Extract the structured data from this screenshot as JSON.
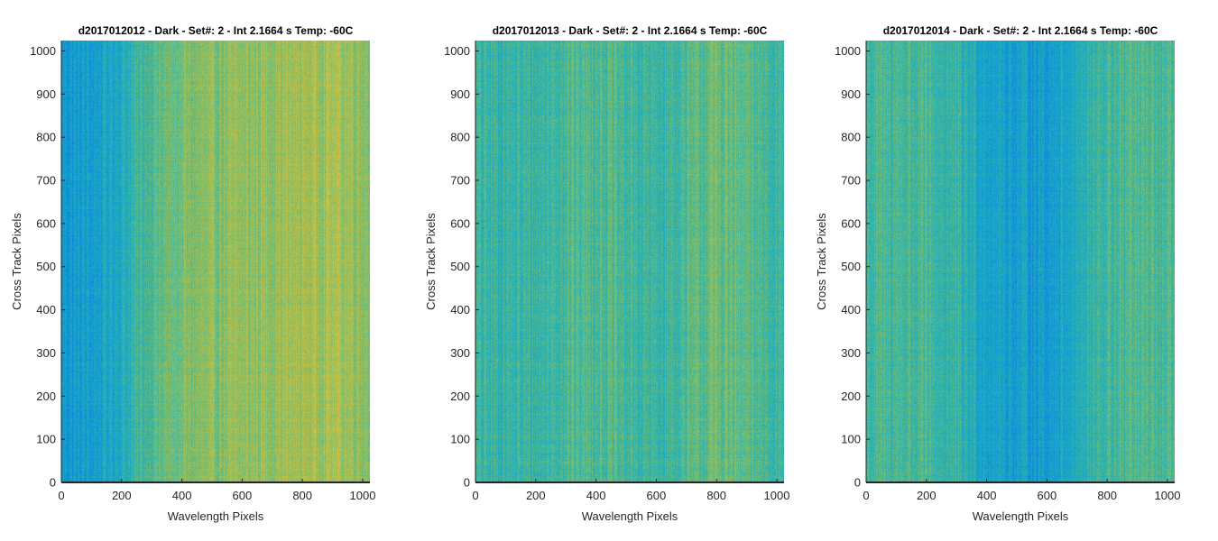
{
  "chart_data": [
    {
      "type": "heatmap",
      "title": "d2017012012 - Dark - Set#: 2 - Int 2.1664 s Temp: -60C",
      "xlabel": "Wavelength Pixels",
      "ylabel": "Cross Track Pixels",
      "xlim": [
        0,
        1024
      ],
      "ylim": [
        0,
        1024
      ],
      "xticks": [
        0,
        200,
        400,
        600,
        800,
        1000
      ],
      "yticks": [
        0,
        100,
        200,
        300,
        400,
        500,
        600,
        700,
        800,
        900,
        1000
      ],
      "colormap": "parula",
      "column_profile": {
        "x": [
          0,
          100,
          200,
          300,
          400,
          500,
          600,
          700,
          800,
          900,
          1024
        ],
        "level": [
          0.34,
          0.36,
          0.44,
          0.56,
          0.62,
          0.64,
          0.66,
          0.68,
          0.69,
          0.72,
          0.66
        ]
      }
    },
    {
      "type": "heatmap",
      "title": "d2017012013 - Dark - Set#: 2 - Int 2.1664 s Temp: -60C",
      "xlabel": "Wavelength Pixels",
      "ylabel": "Cross Track Pixels",
      "xlim": [
        0,
        1024
      ],
      "ylim": [
        0,
        1024
      ],
      "xticks": [
        0,
        200,
        400,
        600,
        800,
        1000
      ],
      "yticks": [
        0,
        100,
        200,
        300,
        400,
        500,
        600,
        700,
        800,
        900,
        1000
      ],
      "colormap": "parula",
      "column_profile": {
        "x": [
          0,
          100,
          200,
          300,
          400,
          500,
          600,
          700,
          800,
          900,
          1024
        ],
        "level": [
          0.5,
          0.5,
          0.5,
          0.55,
          0.56,
          0.52,
          0.5,
          0.54,
          0.6,
          0.56,
          0.52
        ]
      }
    },
    {
      "type": "heatmap",
      "title": "d2017012014 - Dark - Set#: 2 - Int 2.1664 s Temp: -60C",
      "xlabel": "Wavelength Pixels",
      "ylabel": "Cross Track Pixels",
      "xlim": [
        0,
        1024
      ],
      "ylim": [
        0,
        1024
      ],
      "xticks": [
        0,
        200,
        400,
        600,
        800,
        1000
      ],
      "yticks": [
        0,
        100,
        200,
        300,
        400,
        500,
        600,
        700,
        800,
        900,
        1000
      ],
      "colormap": "parula",
      "column_profile": {
        "x": [
          0,
          100,
          200,
          300,
          400,
          500,
          600,
          700,
          800,
          900,
          1024
        ],
        "level": [
          0.52,
          0.54,
          0.52,
          0.48,
          0.4,
          0.36,
          0.36,
          0.44,
          0.52,
          0.54,
          0.52
        ]
      }
    }
  ]
}
